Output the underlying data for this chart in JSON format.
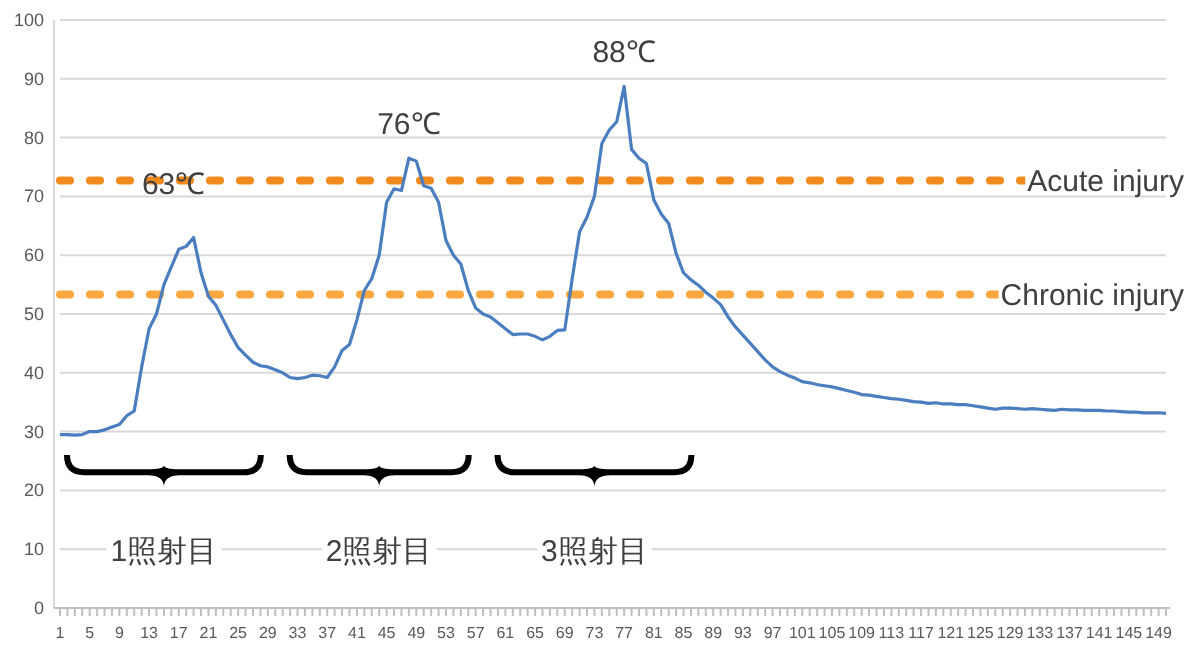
{
  "chart_data": {
    "type": "line",
    "categories": [
      "1",
      null,
      null,
      null,
      "5",
      null,
      null,
      null,
      "9",
      null,
      null,
      null,
      "13",
      null,
      null,
      null,
      "17",
      null,
      null,
      null,
      "21",
      null,
      null,
      null,
      "25",
      null,
      null,
      null,
      "29",
      null,
      null,
      null,
      "33",
      null,
      null,
      null,
      "37",
      null,
      null,
      null,
      "41",
      null,
      null,
      null,
      "45",
      null,
      null,
      null,
      "49",
      null,
      null,
      null,
      "53",
      null,
      null,
      null,
      "57",
      null,
      null,
      null,
      "61",
      null,
      null,
      null,
      "65",
      null,
      null,
      null,
      "69",
      null,
      null,
      null,
      "73",
      null,
      null,
      null,
      "77",
      null,
      null,
      null,
      "81",
      null,
      null,
      null,
      "85",
      null,
      null,
      null,
      "89",
      null,
      null,
      null,
      "93",
      null,
      null,
      null,
      "97",
      null,
      null,
      null,
      "101",
      null,
      null,
      null,
      "105",
      null,
      null,
      null,
      "109",
      null,
      null,
      null,
      "113",
      null,
      null,
      null,
      "117",
      null,
      null,
      null,
      "121",
      null,
      null,
      null,
      "125",
      null,
      null,
      null,
      "129",
      null,
      null,
      null,
      "133",
      null,
      null,
      null,
      "137",
      null,
      null,
      null,
      "141",
      null,
      null,
      null,
      "145",
      null,
      null,
      null,
      "149",
      null
    ],
    "series": [
      {
        "color": "#4a7ebf",
        "values": [
          29.5,
          29.5,
          29.4,
          29.5,
          30,
          30,
          30.3,
          30.8,
          31.2,
          32.7,
          33.5,
          41,
          47.5,
          50,
          55,
          58,
          61,
          61.5,
          63,
          57,
          53,
          51.5,
          49,
          46.5,
          44.3,
          43,
          41.8,
          41.2,
          41,
          40.5,
          40,
          39.2,
          39,
          39.2,
          39.6,
          39.5,
          39.2,
          41,
          43.8,
          44.8,
          49,
          54,
          56,
          60,
          69,
          71.3,
          71,
          76.5,
          76,
          71.8,
          71.4,
          69,
          62.5,
          60,
          58.5,
          54,
          51,
          50,
          49.5,
          48.5,
          47.5,
          46.5,
          46.6,
          46.6,
          46.2,
          45.6,
          46.2,
          47.2,
          47.3,
          56,
          64,
          66.5,
          70,
          79,
          81.3,
          82.7,
          88.7,
          78,
          76.5,
          75.6,
          69.4,
          67,
          65.4,
          60.3,
          57,
          55.8,
          54.9,
          53.7,
          52.7,
          51.6,
          49.5,
          47.8,
          46.4,
          45,
          43.6,
          42.2,
          41,
          40.2,
          39.6,
          39.1,
          38.5,
          38.3,
          38,
          37.8,
          37.6,
          37.3,
          37,
          36.7,
          36.3,
          36.2,
          36,
          35.8,
          35.6,
          35.5,
          35.3,
          35.1,
          35,
          34.8,
          34.9,
          34.7,
          34.7,
          34.6,
          34.6,
          34.4,
          34.2,
          34,
          33.8,
          34,
          34,
          33.9,
          33.8,
          33.9,
          33.8,
          33.7,
          33.6,
          33.8,
          33.7,
          33.7,
          33.6,
          33.6,
          33.6,
          33.5,
          33.5,
          33.4,
          33.3,
          33.3,
          33.2,
          33.2,
          33.2,
          33.1
        ]
      }
    ],
    "ylim": [
      0,
      100
    ],
    "yticks": [
      0,
      10,
      20,
      30,
      40,
      50,
      60,
      70,
      80,
      90,
      100
    ],
    "grid": "y",
    "marker": "none",
    "line_style": "solid",
    "ref_lines": [
      {
        "axis": "y",
        "value": 72.7,
        "label": "Acute injury",
        "color": "#f28a1e",
        "line_style": "dotted"
      },
      {
        "axis": "y",
        "value": 53.3,
        "label": "Chronic injury",
        "color": "#f9a73e",
        "line_style": "dotted"
      }
    ],
    "annotations": [
      "63℃",
      "76℃",
      "88℃",
      "1照射目",
      "2照射目",
      "3照射目"
    ]
  }
}
